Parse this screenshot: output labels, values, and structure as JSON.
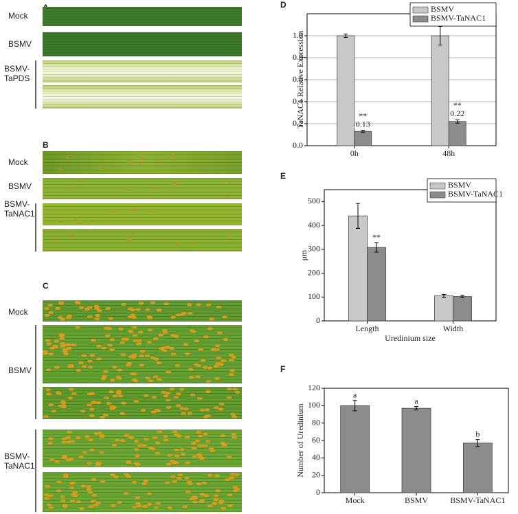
{
  "photo_panels": [
    {
      "label": "A",
      "rows": [
        {
          "label_lines": [
            "Mock"
          ]
        },
        {
          "label_lines": [
            "BSMV"
          ]
        },
        {
          "label_lines": [
            "BSMV-",
            "TaPDS"
          ]
        }
      ]
    },
    {
      "label": "B",
      "rows": [
        {
          "label_lines": [
            "Mock"
          ]
        },
        {
          "label_lines": [
            "BSMV"
          ]
        },
        {
          "label_lines": [
            "BSMV-",
            "TaNAC1"
          ]
        }
      ]
    },
    {
      "label": "C",
      "rows": [
        {
          "label_lines": [
            "Mock"
          ]
        },
        {
          "label_lines": [
            "BSMV"
          ]
        },
        {
          "label_lines": [
            "BSMV-",
            "TaNAC1"
          ]
        }
      ]
    }
  ],
  "chart_data": [
    {
      "type": "bar",
      "panel": "D",
      "ylabel": "TaNAC1 Relative Expression",
      "categories": [
        "0h",
        "48h"
      ],
      "series": [
        {
          "name": "BSMV",
          "color": "#c8c8c8",
          "values": [
            1.0,
            1.0
          ],
          "errors": [
            0.015,
            0.085
          ]
        },
        {
          "name": "BSMV-TaNAC1",
          "color": "#8c8c8c",
          "values": [
            0.13,
            0.22
          ],
          "errors": [
            0.01,
            0.015
          ],
          "annotations": [
            "**",
            "**"
          ],
          "data_labels": true
        }
      ],
      "ylim": [
        0,
        1.2
      ],
      "yticks": [
        {
          "value": 0,
          "label": "0.0"
        },
        0.2,
        0.4,
        0.6,
        0.8,
        {
          "value": 1,
          "label": "1.0"
        }
      ],
      "grid": true,
      "legend": "top-right"
    },
    {
      "type": "bar",
      "panel": "E",
      "ylabel": "μm",
      "xlabel": "Uredinium size",
      "categories": [
        "Length",
        "Width"
      ],
      "series": [
        {
          "name": "BSMV",
          "color": "#c8c8c8",
          "values": [
            440,
            105
          ],
          "errors": [
            52,
            6
          ]
        },
        {
          "name": "BSMV-TaNAC1",
          "color": "#8c8c8c",
          "values": [
            308,
            102
          ],
          "errors": [
            20,
            5
          ],
          "annotations": [
            "**",
            null
          ]
        }
      ],
      "ylim": [
        0,
        550
      ],
      "yticks": [
        0,
        100,
        200,
        300,
        400,
        500
      ],
      "grid": false,
      "legend": "top-right"
    },
    {
      "type": "bar",
      "panel": "F",
      "ylabel": "Number of Uredinium",
      "categories": [
        "Mock",
        "BSMV",
        "BSMV-TaNAC1"
      ],
      "series": [
        {
          "color": "#8c8c8c",
          "values": [
            100,
            97,
            57
          ],
          "errors": [
            6,
            2,
            4
          ],
          "annotations": [
            "a",
            "a",
            "b"
          ]
        }
      ],
      "ylim": [
        0,
        120
      ],
      "yticks": [
        0,
        20,
        40,
        60,
        80,
        100,
        120
      ],
      "grid": false
    }
  ]
}
